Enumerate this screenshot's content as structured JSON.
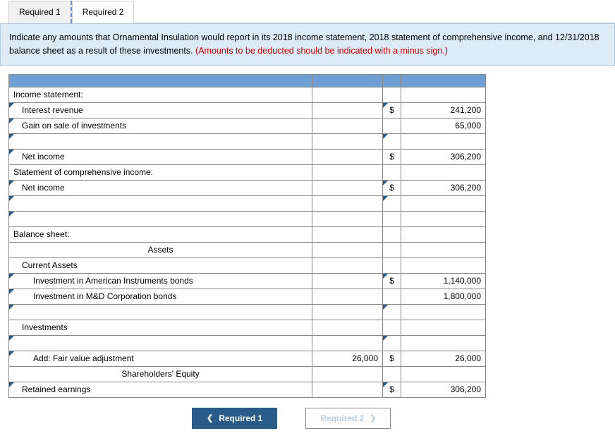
{
  "tabs": {
    "t1": "Required 1",
    "t2": "Required 2"
  },
  "instruction": {
    "main": "Indicate any amounts that Ornamental Insulation would report in its 2018 income statement, 2018 statement of comprehensive income, and 12/31/2018 balance sheet as a result of these investments. ",
    "red": "(Amounts to be deducted should be indicated with a minus sign.)"
  },
  "labels": {
    "income_stmt": "Income statement:",
    "interest_rev": "Interest revenue",
    "gain_sale": "Gain on sale of investments",
    "net_income": "Net income",
    "stmt_comp": "Statement of comprehensive income:",
    "balance_sheet": "Balance sheet:",
    "assets": "Assets",
    "current_assets": "Current Assets",
    "inv_american": "Investment in American Instruments bonds",
    "inv_md": "Investment in M&D Corporation bonds",
    "investments": "Investments",
    "add_fv": "Add: Fair value adjustment",
    "sh_equity": "Shareholders' Equity",
    "retained": "Retained earnings"
  },
  "symbols": {
    "dollar": "$"
  },
  "values": {
    "interest_rev": "241,200",
    "gain_sale": "65,000",
    "net_income_1": "306,200",
    "net_income_2": "306,200",
    "inv_american": "1,140,000",
    "inv_md": "1,800,000",
    "fv_mid": "26,000",
    "fv_val": "26,000",
    "retained": "306,200"
  },
  "nav": {
    "prev": "Required 1",
    "next": "Required 2"
  },
  "colors": {
    "header_row": "#6d9fd3",
    "instruction_bg": "#dcebf5",
    "nav_active": "#2a5c8a",
    "red": "#c00"
  }
}
